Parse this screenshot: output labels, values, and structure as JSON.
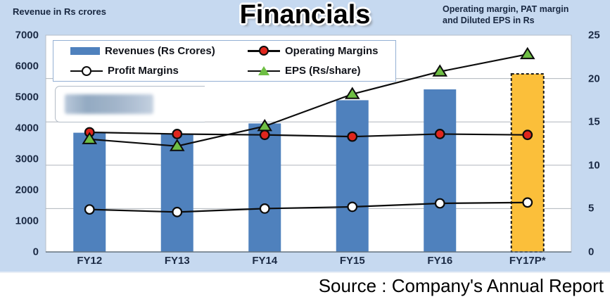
{
  "header": {
    "left_axis_title": "Revenue in Rs crores",
    "title": "Financials",
    "right_axis_title_line1": "Operating  margin, PAT margin",
    "right_axis_title_line2": "and Diluted EPS in Rs"
  },
  "legend": {
    "items": [
      {
        "label": "Revenues (Rs Crores)",
        "marker": "bar-swatch",
        "color": "#4f81bd"
      },
      {
        "label": "Operating Margins",
        "marker": "circle",
        "color": "#e0261d"
      },
      {
        "label": "Profit Margins",
        "marker": "circle",
        "color": "#ffffff"
      },
      {
        "label": "EPS (Rs/share)",
        "marker": "triangle",
        "color": "#6fbf44"
      }
    ]
  },
  "footer": {
    "source": "Source : Company's Annual Report"
  },
  "colors": {
    "panel_background": "#c6d9f0",
    "plot_background": "#ffffff",
    "bar_blue": "#4f81bd",
    "forecast_orange": "#fbbf3a",
    "line_black": "#0c0c0c",
    "marker_red": "#e0261d",
    "marker_white": "#ffffff",
    "marker_green": "#6fbf44",
    "axis_text": "#1b2a44",
    "gridline": "#b0b6bd"
  },
  "chart_data": {
    "type": "bar",
    "subtype": "bar-line-combo",
    "title": "Financials",
    "categories": [
      "FY12",
      "FY13",
      "FY14",
      "FY15",
      "FY16",
      "FY17P*"
    ],
    "left_axis": {
      "label": "Revenue in Rs crores",
      "ticks": [
        0,
        1000,
        2000,
        3000,
        4000,
        5000,
        6000,
        7000
      ],
      "min": 0,
      "max": 7000
    },
    "right_axis": {
      "label": "Operating margin, PAT margin and Diluted EPS in Rs",
      "ticks": [
        0,
        5,
        10,
        15,
        20,
        25
      ],
      "min": 0,
      "max": 25
    },
    "gridlines": [
      5,
      10,
      15,
      20
    ],
    "grid": "horizontal-on",
    "legend_position": "top-inside",
    "series": [
      {
        "name": "Revenues (Rs Crores)",
        "type": "bar",
        "axis": "left",
        "color": "#4f81bd",
        "values": [
          3850,
          3800,
          4150,
          4900,
          5250,
          5750
        ]
      },
      {
        "name": "Operating Margins",
        "type": "line",
        "axis": "right",
        "marker": "circle",
        "marker_color": "#e0261d",
        "values": [
          13.8,
          13.6,
          13.5,
          13.3,
          13.6,
          13.5
        ]
      },
      {
        "name": "Profit Margins",
        "type": "line",
        "axis": "right",
        "marker": "circle",
        "marker_color": "#ffffff",
        "values": [
          4.9,
          4.6,
          5.0,
          5.2,
          5.6,
          5.7
        ]
      },
      {
        "name": "EPS (Rs/share)",
        "type": "line",
        "axis": "right",
        "marker": "triangle",
        "marker_color": "#6fbf44",
        "values": [
          13.0,
          12.2,
          14.5,
          18.2,
          20.8,
          22.8
        ]
      }
    ],
    "forecast_bar": {
      "category": "FY17P*",
      "color": "#fbbf3a",
      "border_style": "dashed-black",
      "note": "last bar is a projection"
    }
  }
}
